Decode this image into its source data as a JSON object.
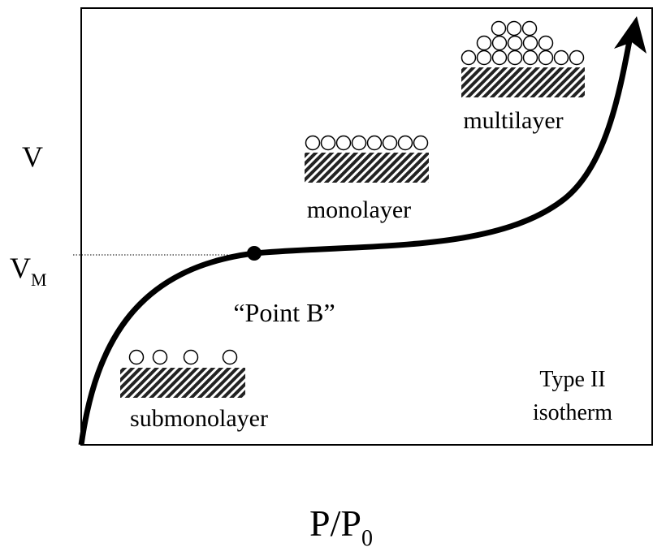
{
  "axes": {
    "y_label": "V",
    "vm_label": {
      "main": "V",
      "subscript": "M"
    },
    "x_label": {
      "main": "P/P",
      "subscript": "0"
    }
  },
  "annotations": {
    "point_b": "“Point B”",
    "submonolayer": "submonolayer",
    "monolayer": "monolayer",
    "multilayer": "multilayer",
    "type": [
      "Type II",
      "isotherm"
    ]
  }
}
